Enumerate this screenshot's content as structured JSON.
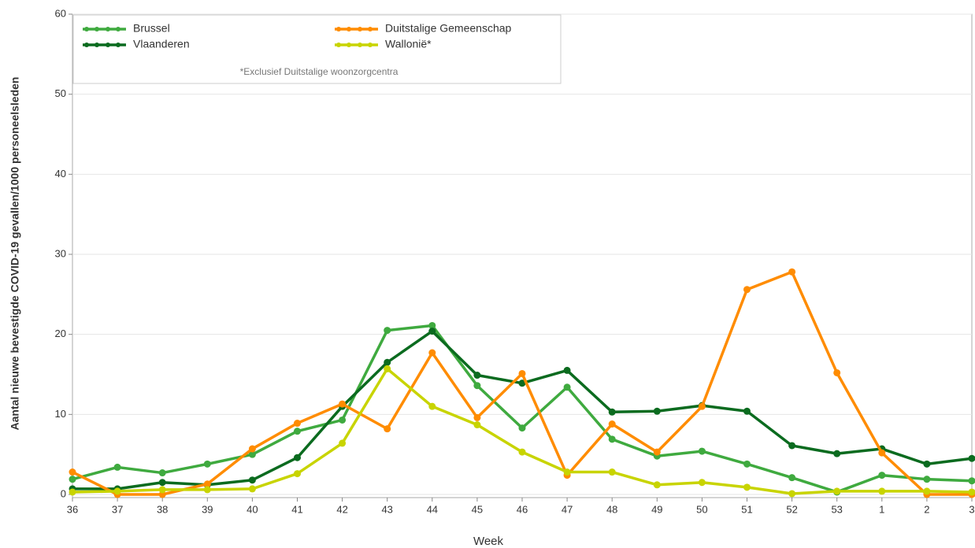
{
  "chart_data": {
    "type": "line",
    "y_label": "Aantal nieuwe bevestigde COVID-19 gevallen/1000 personeelsleden",
    "x_label": "Week",
    "note": "*Exclusief Duitstalige woonzorgcentra",
    "categories": [
      "36",
      "37",
      "38",
      "39",
      "40",
      "41",
      "42",
      "43",
      "44",
      "45",
      "46",
      "47",
      "48",
      "49",
      "50",
      "51",
      "52",
      "53",
      "1",
      "2",
      "3"
    ],
    "series": [
      {
        "name": "Brussel",
        "color": "#3faa3f",
        "values": [
          1.9,
          3.4,
          2.7,
          3.8,
          5.0,
          7.9,
          9.3,
          20.5,
          21.1,
          13.6,
          8.3,
          13.4,
          6.9,
          4.8,
          5.4,
          3.8,
          2.1,
          0.3,
          2.4,
          1.9,
          1.7
        ]
      },
      {
        "name": "Vlaanderen",
        "color": "#0b6b1f",
        "values": [
          0.7,
          0.7,
          1.5,
          1.2,
          1.8,
          4.6,
          11.0,
          16.5,
          20.4,
          14.9,
          13.9,
          15.5,
          10.3,
          10.4,
          11.1,
          10.4,
          6.1,
          5.1,
          5.7,
          3.8,
          4.5
        ]
      },
      {
        "name": "Duitstalige Gemeenschap",
        "color": "#ff8c00",
        "values": [
          2.8,
          0,
          0,
          1.3,
          5.7,
          8.9,
          11.3,
          8.2,
          17.7,
          9.6,
          15.1,
          2.4,
          8.8,
          5.3,
          11.0,
          25.6,
          27.8,
          15.2,
          5.2,
          0,
          0
        ]
      },
      {
        "name": "Wallonië*",
        "color": "#c8d400",
        "values": [
          0.3,
          0.4,
          0.6,
          0.6,
          0.7,
          2.6,
          6.4,
          15.7,
          11.0,
          8.7,
          5.3,
          2.8,
          2.8,
          1.2,
          1.5,
          0.9,
          0.1,
          0.4,
          0.4,
          0.4,
          0.3
        ]
      }
    ],
    "ylim": [
      0,
      60
    ],
    "yticks": [
      0,
      10,
      20,
      30,
      40,
      50,
      60
    ],
    "grid": true
  }
}
